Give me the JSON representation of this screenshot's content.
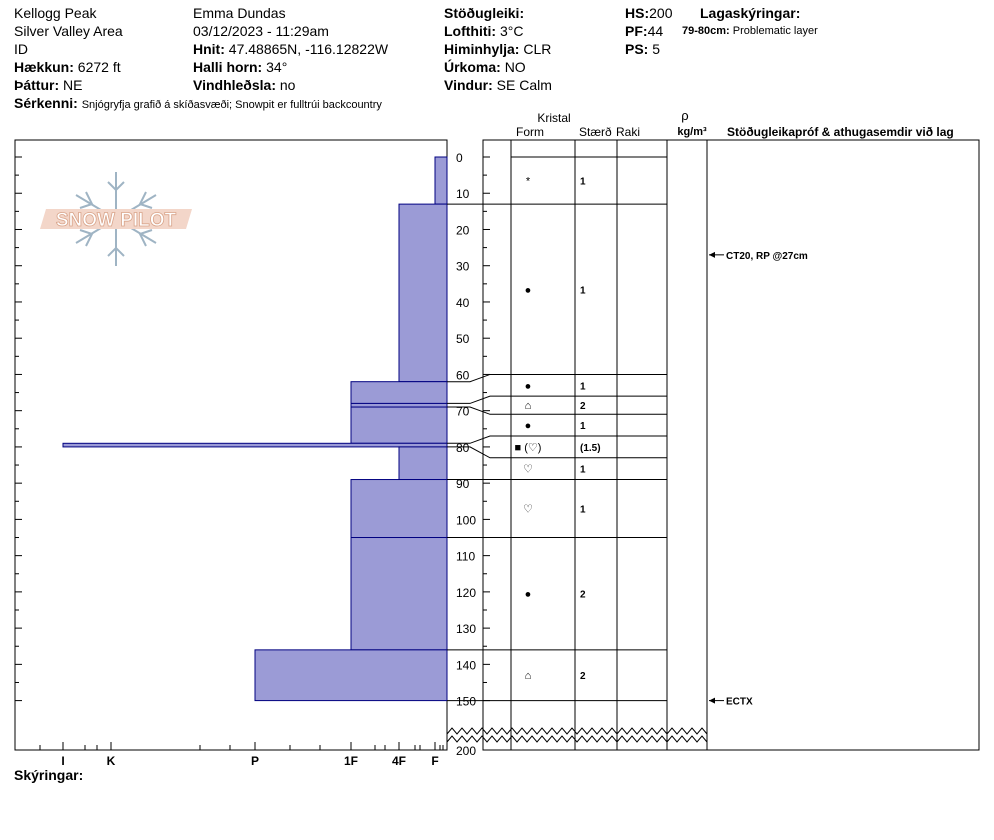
{
  "header": {
    "location": "Kellogg Peak",
    "area": "Silver Valley Area",
    "id_label": "ID",
    "elevation_label": "Hækkun:",
    "elevation_value": "6272 ft",
    "aspect_label": "Þáttur:",
    "aspect_value": "NE",
    "observer": "Emma Dundas",
    "datetime": "03/12/2023 - 11:29am",
    "coords_label": "Hnit:",
    "coords_value": "47.48865N, -116.12822W",
    "slope_label": "Halli horn:",
    "slope_value": "34°",
    "wind_loading_label": "Vindhleðsla:",
    "wind_loading_value": "no",
    "stability_label": "Stöðugleiki:",
    "air_temp_label": "Lofthiti:",
    "air_temp_value": "3°C",
    "sky_label": "Himinhylja:",
    "sky_value": "CLR",
    "precip_label": "Úrkoma:",
    "precip_value": "NO",
    "wind_label": "Vindur:",
    "wind_value": "SE Calm",
    "hs_label": "HS:",
    "hs_value": "200",
    "pf_label": "PF:",
    "pf_value": "44",
    "ps_label": "PS:",
    "ps_value": "5",
    "legend_label": "Lagaskýringar:",
    "legend_depth": "79-80cm:",
    "legend_text": "Problematic layer",
    "features_label": "Sérkenni:",
    "features_value": "Snjógryfja grafið á skíðasvæði;  Snowpit er fulltrúi backcountry",
    "notes_label": "Skýringar:"
  },
  "columns": {
    "crystal": "Kristal",
    "form": "Form",
    "size": "Stærð",
    "moisture": "Raki",
    "rho": "ρ",
    "density_unit": "kg/m³",
    "stability_tests": "Stöðugleikapróf & athugasemdir við lag"
  },
  "logo": {
    "text": "SNOW PILOT"
  },
  "chart_data": {
    "type": "bar",
    "title": "",
    "y_axis": {
      "label": "",
      "range": [
        0,
        200
      ],
      "ticks": [
        0,
        10,
        20,
        30,
        40,
        50,
        60,
        70,
        80,
        90,
        100,
        110,
        120,
        130,
        140,
        150,
        200
      ]
    },
    "hardness_scale": [
      "I",
      "K",
      "P",
      "1F",
      "4F",
      "F"
    ],
    "hardness_layers": [
      {
        "top": 0,
        "bottom": 13,
        "hardness": "F-"
      },
      {
        "top": 13,
        "bottom": 62,
        "hardness": "4F"
      },
      {
        "top": 62,
        "bottom": 68,
        "hardness": "1F"
      },
      {
        "top": 68,
        "bottom": 69,
        "hardness": "1F"
      },
      {
        "top": 69,
        "bottom": 79,
        "hardness": "1F"
      },
      {
        "top": 79,
        "bottom": 80,
        "hardness": "I"
      },
      {
        "top": 80,
        "bottom": 89,
        "hardness": "4F"
      },
      {
        "top": 89,
        "bottom": 105,
        "hardness": "1F"
      },
      {
        "top": 105,
        "bottom": 136,
        "hardness": "1F"
      },
      {
        "top": 136,
        "bottom": 150,
        "hardness": "P"
      }
    ],
    "grain_layers": [
      {
        "top": 0,
        "bottom": 13,
        "form": "*",
        "size": "1"
      },
      {
        "top": 13,
        "bottom": 60,
        "form": "●",
        "size": "1"
      },
      {
        "top": 60,
        "bottom": 66,
        "form": "●",
        "size": "1"
      },
      {
        "top": 66,
        "bottom": 71,
        "form": "⌂",
        "size": "2"
      },
      {
        "top": 71,
        "bottom": 77,
        "form": "●",
        "size": "1"
      },
      {
        "top": 77,
        "bottom": 83,
        "form": "■ (♡)",
        "size": "(1.5)"
      },
      {
        "top": 83,
        "bottom": 89,
        "form": "♡",
        "size": "1"
      },
      {
        "top": 89,
        "bottom": 105,
        "form": "♡",
        "size": "1"
      },
      {
        "top": 105,
        "bottom": 136,
        "form": "●",
        "size": "2"
      },
      {
        "top": 136,
        "bottom": 150,
        "form": "⌂",
        "size": "2"
      }
    ],
    "stability_tests": [
      {
        "depth": 27,
        "text": "CT20, RP @27cm"
      },
      {
        "depth": 150,
        "text": "ECTX"
      }
    ],
    "colors": {
      "fill": "#9b9bd6",
      "edge": "#000080"
    }
  }
}
